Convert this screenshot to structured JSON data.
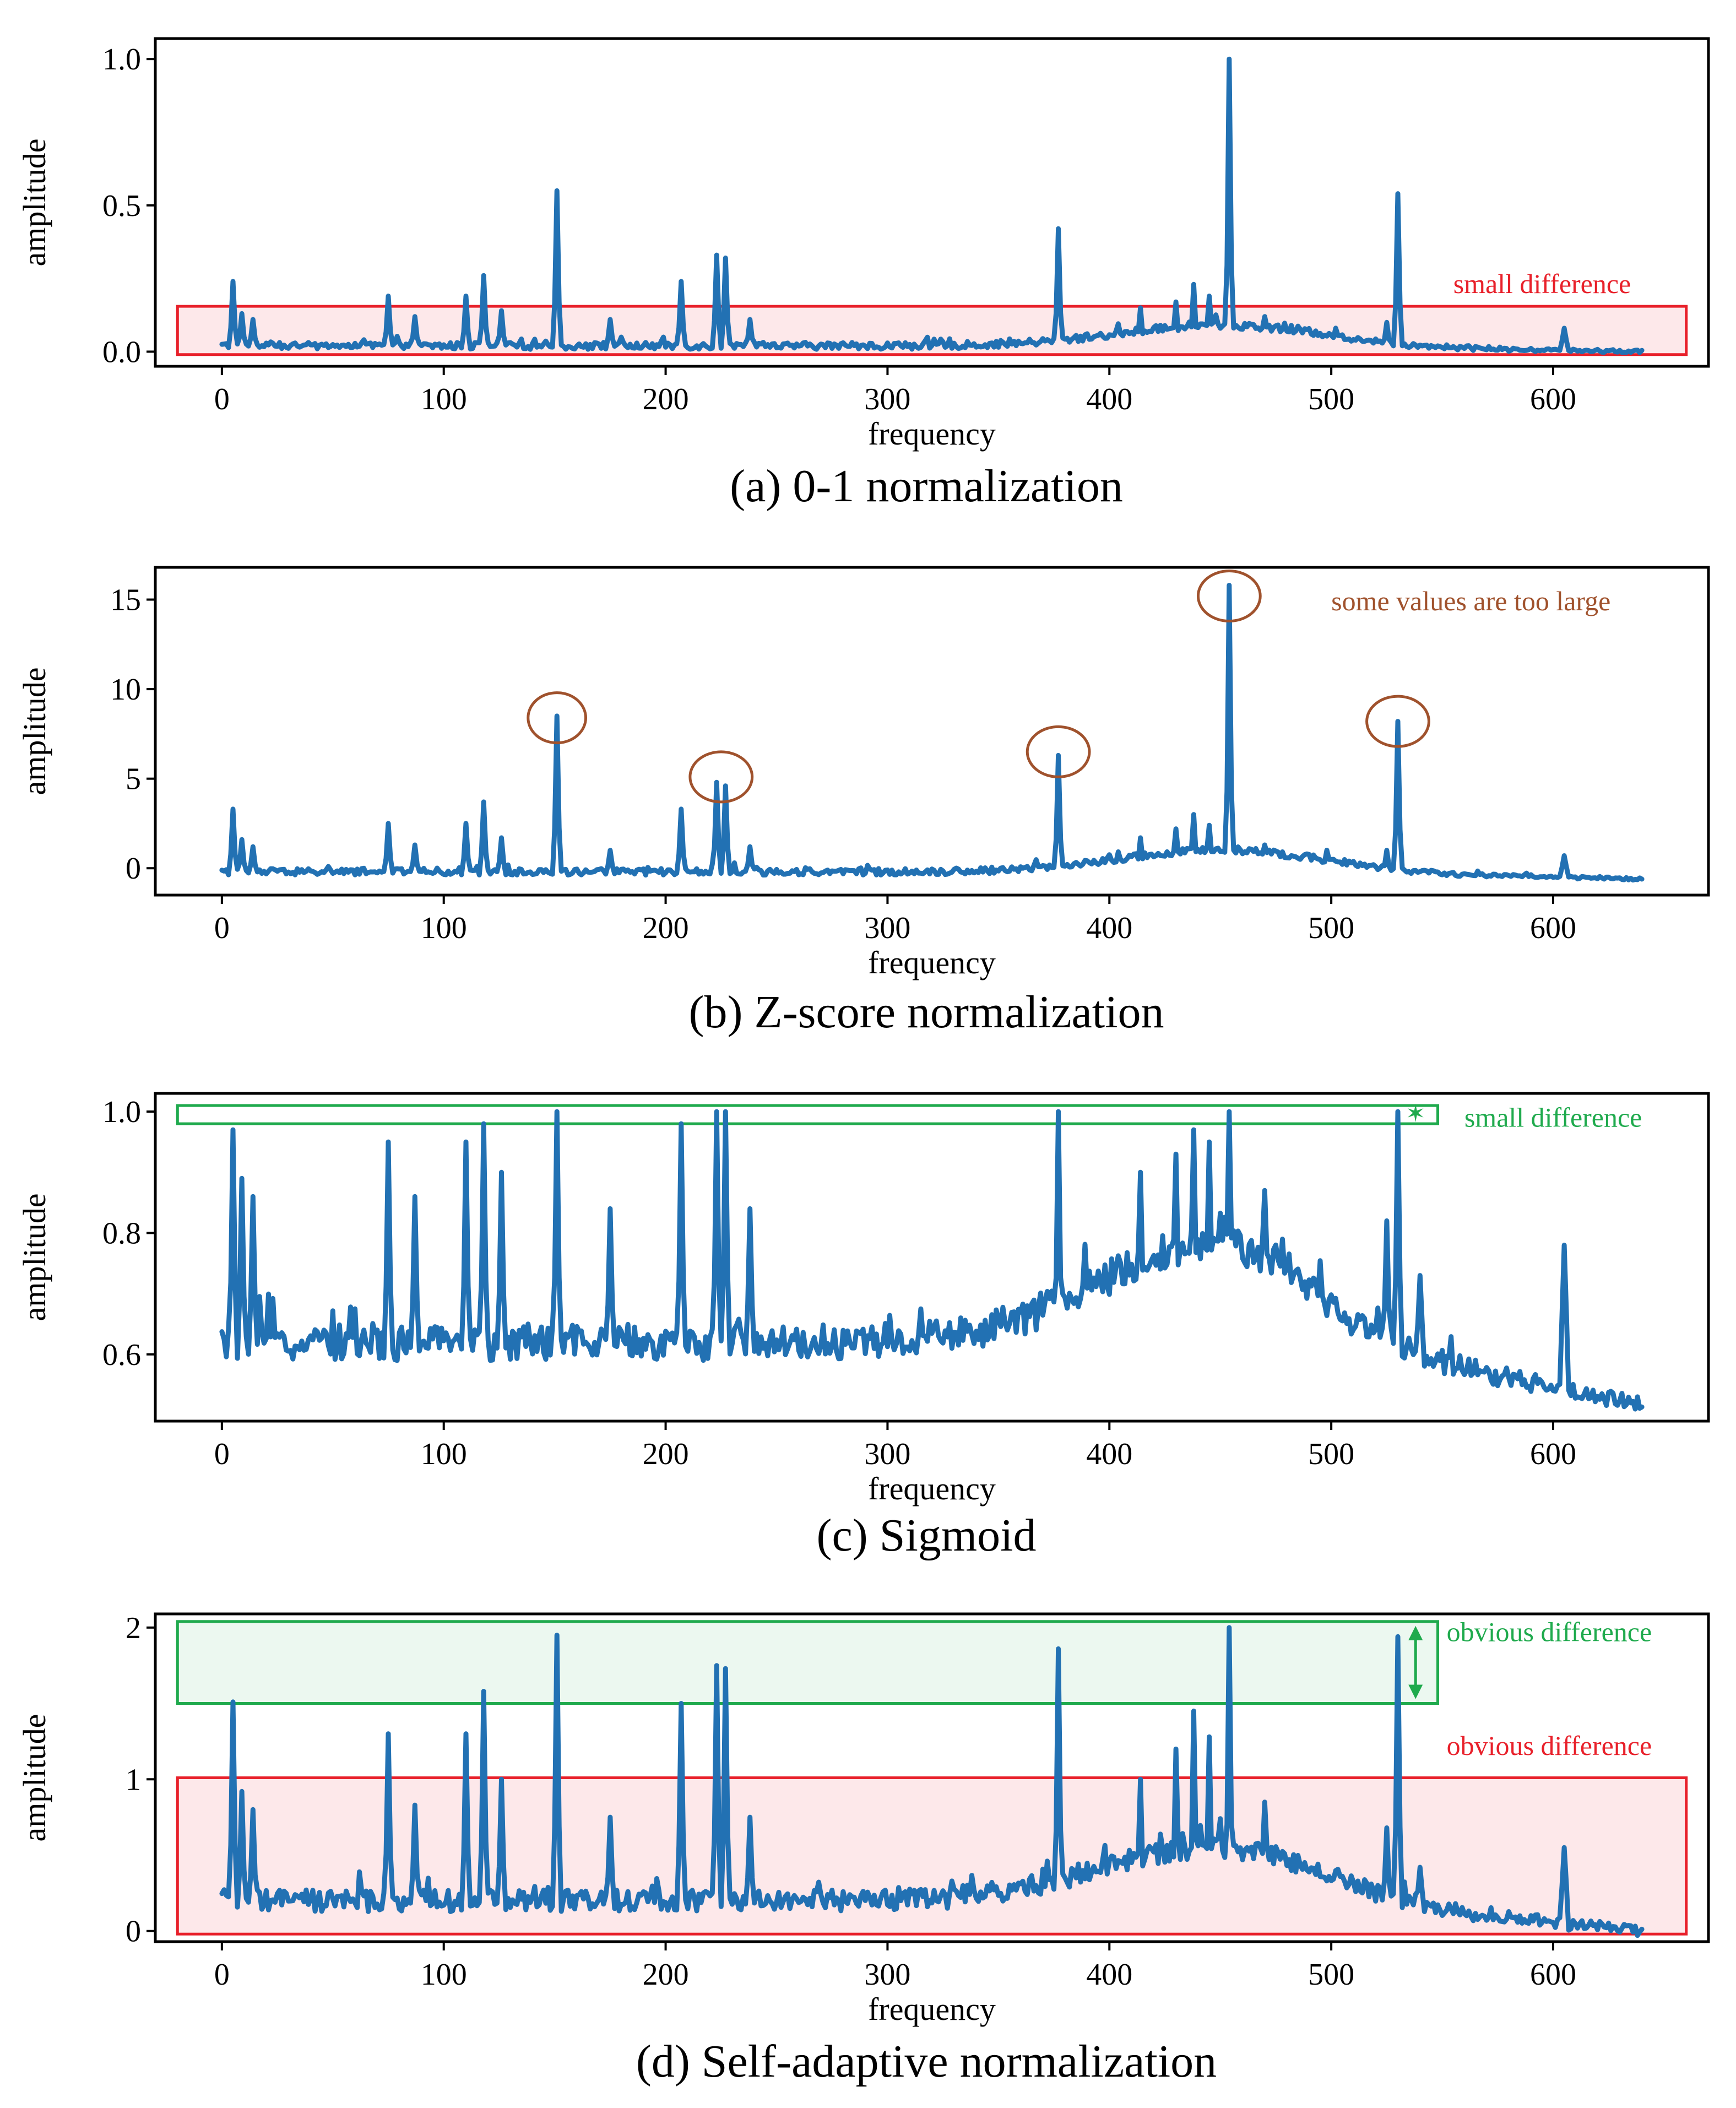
{
  "chart_data": [
    {
      "type": "line",
      "caption": "(a) 0-1 normalization",
      "xlabel": "frequency",
      "ylabel": "amplitude",
      "xlim": [
        -30,
        670
      ],
      "ylim": [
        -0.05,
        1.07
      ],
      "xticks": [
        0,
        100,
        200,
        300,
        400,
        500,
        600
      ],
      "xtick_labels": [
        "0",
        "100",
        "200",
        "300",
        "400",
        "500",
        "600"
      ],
      "yticks": [
        0.0,
        0.5,
        1.0
      ],
      "ytick_labels": [
        "0.0",
        "0.5",
        "1.0"
      ],
      "baseline": 0.02,
      "noise": 0.02,
      "peaks": [
        [
          5,
          0.24
        ],
        [
          9,
          0.13
        ],
        [
          14,
          0.11
        ],
        [
          75,
          0.19
        ],
        [
          87,
          0.12
        ],
        [
          110,
          0.19
        ],
        [
          118,
          0.26
        ],
        [
          126,
          0.14
        ],
        [
          151,
          0.55
        ],
        [
          175,
          0.11
        ],
        [
          207,
          0.24
        ],
        [
          223,
          0.33
        ],
        [
          227,
          0.32
        ],
        [
          238,
          0.11
        ],
        [
          377,
          0.42
        ],
        [
          414,
          0.15
        ],
        [
          430,
          0.17
        ],
        [
          438,
          0.23
        ],
        [
          445,
          0.19
        ],
        [
          454,
          1.0
        ],
        [
          470,
          0.12
        ],
        [
          525,
          0.1
        ],
        [
          530,
          0.54
        ],
        [
          605,
          0.08
        ]
      ],
      "hump": [
        450,
        45,
        0.07
      ],
      "tail": [
        500,
        640,
        0.0
      ],
      "annotations": [
        {
          "kind": "rect",
          "x": [
            -20,
            660
          ],
          "y": [
            -0.01,
            0.155
          ],
          "color": "#e8202a",
          "fill": "#fde8ea",
          "text": "small difference",
          "text_x": 555,
          "text_y": 0.2
        }
      ]
    },
    {
      "type": "line",
      "caption": "(b) Z-score normalization",
      "xlabel": "frequency",
      "ylabel": "amplitude",
      "xlim": [
        -30,
        670
      ],
      "ylim": [
        -1.5,
        16.8
      ],
      "xticks": [
        0,
        100,
        200,
        300,
        400,
        500,
        600
      ],
      "xtick_labels": [
        "0",
        "100",
        "200",
        "300",
        "400",
        "500",
        "600"
      ],
      "yticks": [
        0,
        5,
        10,
        15
      ],
      "ytick_labels": [
        "0",
        "5",
        "10",
        "15"
      ],
      "baseline": -0.2,
      "noise": 0.3,
      "peaks": [
        [
          5,
          3.3
        ],
        [
          9,
          1.6
        ],
        [
          14,
          1.2
        ],
        [
          75,
          2.5
        ],
        [
          87,
          1.3
        ],
        [
          110,
          2.5
        ],
        [
          118,
          3.7
        ],
        [
          126,
          1.7
        ],
        [
          151,
          8.5
        ],
        [
          175,
          1.0
        ],
        [
          207,
          3.3
        ],
        [
          223,
          4.8
        ],
        [
          227,
          4.6
        ],
        [
          238,
          1.2
        ],
        [
          377,
          6.3
        ],
        [
          414,
          1.7
        ],
        [
          430,
          2.2
        ],
        [
          438,
          3.0
        ],
        [
          445,
          2.4
        ],
        [
          454,
          15.8
        ],
        [
          470,
          1.3
        ],
        [
          525,
          1.0
        ],
        [
          530,
          8.2
        ],
        [
          605,
          0.7
        ]
      ],
      "hump": [
        450,
        45,
        1.2
      ],
      "tail": [
        500,
        640,
        -0.6
      ],
      "annotations": [
        {
          "kind": "circle",
          "x": 151,
          "y": 8.4,
          "rx": 13,
          "ry": 1.4,
          "color": "#a0522d"
        },
        {
          "kind": "circle",
          "x": 225,
          "y": 5.1,
          "rx": 14,
          "ry": 1.4,
          "color": "#a0522d"
        },
        {
          "kind": "circle",
          "x": 377,
          "y": 6.5,
          "rx": 14,
          "ry": 1.4,
          "color": "#a0522d"
        },
        {
          "kind": "circle",
          "x": 454,
          "y": 15.2,
          "rx": 14,
          "ry": 1.4,
          "color": "#a0522d"
        },
        {
          "kind": "circle",
          "x": 530,
          "y": 8.2,
          "rx": 14,
          "ry": 1.4,
          "color": "#a0522d"
        },
        {
          "kind": "text",
          "text": "some values are too large",
          "x": 500,
          "y": 14.4,
          "color": "#a0522d"
        }
      ]
    },
    {
      "type": "line",
      "caption": "(c) Sigmoid",
      "xlabel": "frequency",
      "ylabel": "amplitude",
      "xlim": [
        -30,
        670
      ],
      "ylim": [
        0.49,
        1.03
      ],
      "xticks": [
        0,
        100,
        200,
        300,
        400,
        500,
        600
      ],
      "xtick_labels": [
        "0",
        "100",
        "200",
        "300",
        "400",
        "500",
        "600"
      ],
      "yticks": [
        0.6,
        0.8,
        1.0
      ],
      "ytick_labels": [
        "0.6",
        "0.8",
        "1.0"
      ],
      "baseline": 0.62,
      "noise": 0.05,
      "peaks": [
        [
          5,
          0.97
        ],
        [
          9,
          0.89
        ],
        [
          14,
          0.86
        ],
        [
          75,
          0.95
        ],
        [
          87,
          0.86
        ],
        [
          110,
          0.95
        ],
        [
          118,
          0.98
        ],
        [
          126,
          0.9
        ],
        [
          151,
          1.0
        ],
        [
          175,
          0.84
        ],
        [
          207,
          0.98
        ],
        [
          223,
          1.0
        ],
        [
          227,
          1.0
        ],
        [
          238,
          0.84
        ],
        [
          377,
          1.0
        ],
        [
          414,
          0.9
        ],
        [
          430,
          0.93
        ],
        [
          438,
          0.97
        ],
        [
          445,
          0.95
        ],
        [
          454,
          1.0
        ],
        [
          470,
          0.87
        ],
        [
          525,
          0.82
        ],
        [
          530,
          1.0
        ],
        [
          540,
          0.73
        ],
        [
          605,
          0.78
        ]
      ],
      "hump": [
        445,
        50,
        0.16
      ],
      "tail": [
        480,
        640,
        0.52
      ],
      "annotations": [
        {
          "kind": "rect",
          "x": [
            -20,
            548
          ],
          "y": [
            0.98,
            1.01
          ],
          "color": "#1faa4d",
          "fill": "none",
          "text": "small difference",
          "text_x": 560,
          "text_y": 0.975
        },
        {
          "kind": "marker",
          "x": 538,
          "y": 0.998,
          "color": "#1faa4d"
        }
      ]
    },
    {
      "type": "line",
      "caption": "(d) Self-adaptive normalization",
      "xlabel": "frequency",
      "ylabel": "amplitude",
      "xlim": [
        -30,
        670
      ],
      "ylim": [
        -0.07,
        2.09
      ],
      "xticks": [
        0,
        100,
        200,
        300,
        400,
        500,
        600
      ],
      "xtick_labels": [
        "0",
        "100",
        "200",
        "300",
        "400",
        "500",
        "600"
      ],
      "yticks": [
        0,
        1,
        2
      ],
      "ytick_labels": [
        "0",
        "1",
        "2"
      ],
      "baseline": 0.2,
      "noise": 0.12,
      "peaks": [
        [
          5,
          1.51
        ],
        [
          9,
          0.92
        ],
        [
          14,
          0.8
        ],
        [
          75,
          1.3
        ],
        [
          87,
          0.83
        ],
        [
          110,
          1.3
        ],
        [
          118,
          1.58
        ],
        [
          126,
          1.0
        ],
        [
          151,
          1.95
        ],
        [
          175,
          0.75
        ],
        [
          207,
          1.5
        ],
        [
          223,
          1.75
        ],
        [
          227,
          1.73
        ],
        [
          238,
          0.75
        ],
        [
          377,
          1.86
        ],
        [
          414,
          1.0
        ],
        [
          430,
          1.2
        ],
        [
          438,
          1.45
        ],
        [
          445,
          1.28
        ],
        [
          454,
          2.0
        ],
        [
          470,
          0.85
        ],
        [
          525,
          0.68
        ],
        [
          530,
          1.94
        ],
        [
          540,
          0.42
        ],
        [
          605,
          0.55
        ]
      ],
      "hump": [
        445,
        50,
        0.35
      ],
      "tail": [
        490,
        640,
        0.0
      ],
      "annotations": [
        {
          "kind": "rect",
          "x": [
            -20,
            548
          ],
          "y": [
            1.5,
            2.04
          ],
          "color": "#1faa4d",
          "fill": "#ecf8f0",
          "text": "obvious difference",
          "text_x": 552,
          "text_y": 1.91
        },
        {
          "kind": "rect",
          "x": [
            -20,
            660
          ],
          "y": [
            -0.02,
            1.01
          ],
          "color": "#e8202a",
          "fill": "#fde8ea",
          "text": "obvious difference",
          "text_x": 552,
          "text_y": 1.16
        },
        {
          "kind": "arrow",
          "x": 538,
          "y": [
            1.5,
            2.04
          ],
          "color": "#1faa4d"
        }
      ]
    }
  ]
}
